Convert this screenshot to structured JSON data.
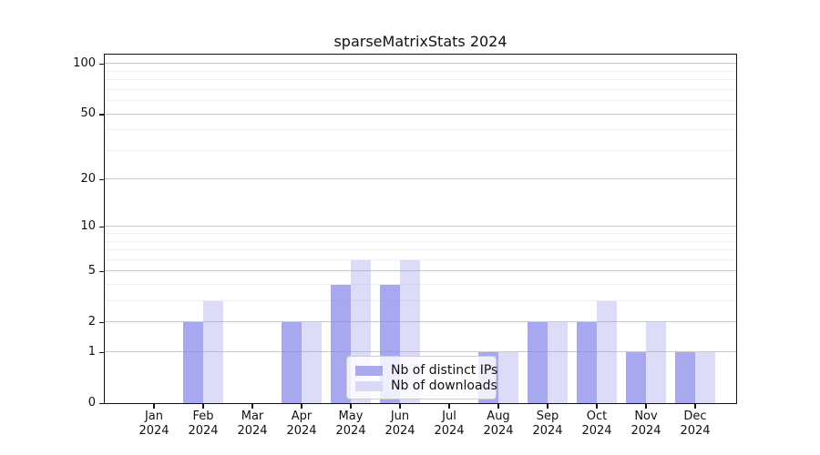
{
  "chart_data": {
    "type": "bar",
    "title": "sparseMatrixStats 2024",
    "categories": [
      "Jan",
      "Feb",
      "Mar",
      "Apr",
      "May",
      "Jun",
      "Jul",
      "Aug",
      "Sep",
      "Oct",
      "Nov",
      "Dec"
    ],
    "year_label": "2024",
    "series": [
      {
        "name": "Nb of distinct IPs",
        "color": "#a9a9ef",
        "fill_rgba": "rgba(134,134,234,0.72)",
        "values": [
          0,
          2,
          0,
          2,
          4,
          4,
          0,
          1,
          2,
          2,
          1,
          1
        ]
      },
      {
        "name": "Nb of downloads",
        "color": "#dadaf7",
        "fill_rgba": "rgba(155,155,235,0.35)",
        "values": [
          0,
          3,
          0,
          2,
          6,
          6,
          0,
          1,
          2,
          3,
          2,
          1
        ]
      }
    ],
    "y_scale": "log1p",
    "y_axis_ticks": [
      0,
      1,
      2,
      5,
      10,
      20,
      50,
      100
    ],
    "y_minor_gridlines": [
      3,
      4,
      6,
      7,
      8,
      9,
      30,
      40,
      60,
      70,
      80,
      90
    ],
    "ylim": [
      0,
      116
    ],
    "grid": "on",
    "legend_position": "lower center",
    "xlabel": "",
    "ylabel": ""
  },
  "style_colors": {
    "major_grid": "#c9c9c9",
    "minor_grid": "#efefef",
    "spine": "#141414",
    "background": "#ffffff"
  }
}
